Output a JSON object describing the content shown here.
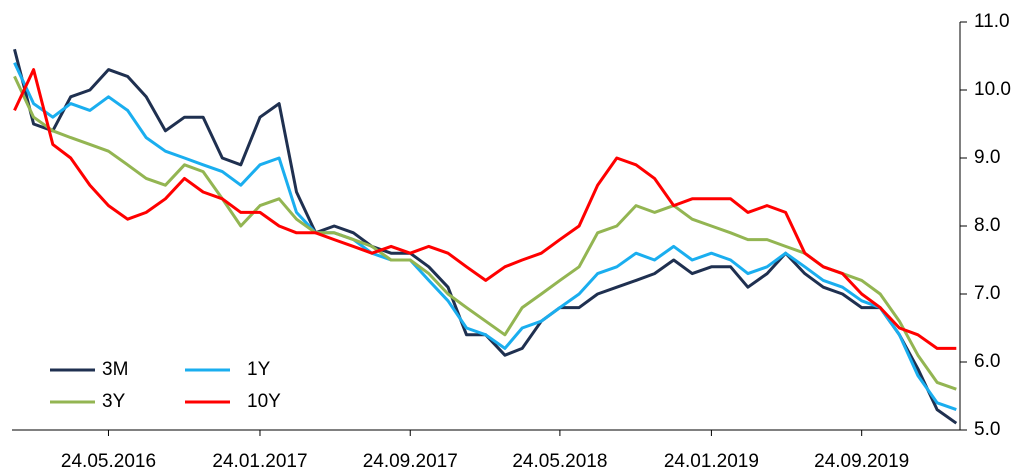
{
  "chart_data": {
    "type": "line",
    "x": [
      "2015-12-24",
      "2016-01-24",
      "2016-02-24",
      "2016-03-24",
      "2016-04-24",
      "2016-05-24",
      "2016-06-24",
      "2016-07-24",
      "2016-08-24",
      "2016-09-24",
      "2016-10-24",
      "2016-11-24",
      "2016-12-24",
      "2017-01-24",
      "2017-02-24",
      "2017-03-24",
      "2017-04-24",
      "2017-05-24",
      "2017-06-24",
      "2017-07-24",
      "2017-08-24",
      "2017-09-24",
      "2017-10-24",
      "2017-11-24",
      "2017-12-24",
      "2018-01-24",
      "2018-02-24",
      "2018-03-24",
      "2018-04-24",
      "2018-05-24",
      "2018-06-24",
      "2018-07-24",
      "2018-08-24",
      "2018-09-24",
      "2018-10-24",
      "2018-11-24",
      "2018-12-24",
      "2019-01-24",
      "2019-02-24",
      "2019-03-24",
      "2019-04-24",
      "2019-05-24",
      "2019-06-24",
      "2019-07-24",
      "2019-08-24",
      "2019-09-24",
      "2019-10-24",
      "2019-11-24",
      "2019-12-24",
      "2020-01-24",
      "2020-02-24"
    ],
    "series": [
      {
        "name": "3M",
        "color": "#1f3050",
        "values": [
          10.6,
          9.5,
          9.4,
          9.9,
          10.0,
          10.3,
          10.2,
          9.9,
          9.4,
          9.6,
          9.6,
          9.0,
          8.9,
          9.6,
          9.8,
          8.5,
          7.9,
          8.0,
          7.9,
          7.7,
          7.6,
          7.6,
          7.4,
          7.1,
          6.4,
          6.4,
          6.1,
          6.2,
          6.6,
          6.8,
          6.8,
          7.0,
          7.1,
          7.2,
          7.3,
          7.5,
          7.3,
          7.4,
          7.4,
          7.1,
          7.3,
          7.6,
          7.3,
          7.1,
          7.0,
          6.8,
          6.8,
          6.4,
          5.9,
          5.3,
          5.1
        ]
      },
      {
        "name": "1Y",
        "color": "#1aaeef",
        "values": [
          10.4,
          9.8,
          9.6,
          9.8,
          9.7,
          9.9,
          9.7,
          9.3,
          9.1,
          9.0,
          8.9,
          8.8,
          8.6,
          8.9,
          9.0,
          8.2,
          7.9,
          7.9,
          7.8,
          7.6,
          7.5,
          7.5,
          7.2,
          6.9,
          6.5,
          6.4,
          6.2,
          6.5,
          6.6,
          6.8,
          7.0,
          7.3,
          7.4,
          7.6,
          7.5,
          7.7,
          7.5,
          7.6,
          7.5,
          7.3,
          7.4,
          7.6,
          7.4,
          7.2,
          7.1,
          6.9,
          6.8,
          6.4,
          5.8,
          5.4,
          5.3
        ]
      },
      {
        "name": "3Y",
        "color": "#93b552",
        "values": [
          10.2,
          9.6,
          9.4,
          9.3,
          9.2,
          9.1,
          8.9,
          8.7,
          8.6,
          8.9,
          8.8,
          8.4,
          8.0,
          8.3,
          8.4,
          8.1,
          7.9,
          7.9,
          7.8,
          7.7,
          7.5,
          7.5,
          7.3,
          7.0,
          6.8,
          6.6,
          6.4,
          6.8,
          7.0,
          7.2,
          7.4,
          7.9,
          8.0,
          8.3,
          8.2,
          8.3,
          8.1,
          8.0,
          7.9,
          7.8,
          7.8,
          7.7,
          7.6,
          7.4,
          7.3,
          7.2,
          7.0,
          6.6,
          6.1,
          5.7,
          5.6
        ]
      },
      {
        "name": "10Y",
        "color": "#ff0000",
        "values": [
          9.7,
          10.3,
          9.2,
          9.0,
          8.6,
          8.3,
          8.1,
          8.2,
          8.4,
          8.7,
          8.5,
          8.4,
          8.2,
          8.2,
          8.0,
          7.9,
          7.9,
          7.8,
          7.7,
          7.6,
          7.7,
          7.6,
          7.7,
          7.6,
          7.4,
          7.2,
          7.4,
          7.5,
          7.6,
          7.8,
          8.0,
          8.6,
          9.0,
          8.9,
          8.7,
          8.3,
          8.4,
          8.4,
          8.4,
          8.2,
          8.3,
          8.2,
          7.6,
          7.4,
          7.3,
          7.0,
          6.8,
          6.5,
          6.4,
          6.2,
          6.2
        ]
      }
    ],
    "xlim": [
      "2015-12-20",
      "2020-03-01"
    ],
    "xticks": [
      {
        "value": "2016-05-24",
        "label": "24.05.2016"
      },
      {
        "value": "2017-01-24",
        "label": "24.01.2017"
      },
      {
        "value": "2017-09-24",
        "label": "24.09.2017"
      },
      {
        "value": "2018-05-24",
        "label": "24.05.2018"
      },
      {
        "value": "2019-01-24",
        "label": "24.01.2019"
      },
      {
        "value": "2019-09-24",
        "label": "24.09.2019"
      }
    ],
    "ylim": [
      5,
      11
    ],
    "yticks": [
      {
        "value": 5,
        "label": "5.0"
      },
      {
        "value": 6,
        "label": "6.0"
      },
      {
        "value": 7,
        "label": "7.0"
      },
      {
        "value": 8,
        "label": "8.0"
      },
      {
        "value": 9,
        "label": "9.0"
      },
      {
        "value": 10,
        "label": "10.0"
      },
      {
        "value": 11,
        "label": "11.0"
      }
    ],
    "yaxis_side": "right",
    "grid": false
  }
}
